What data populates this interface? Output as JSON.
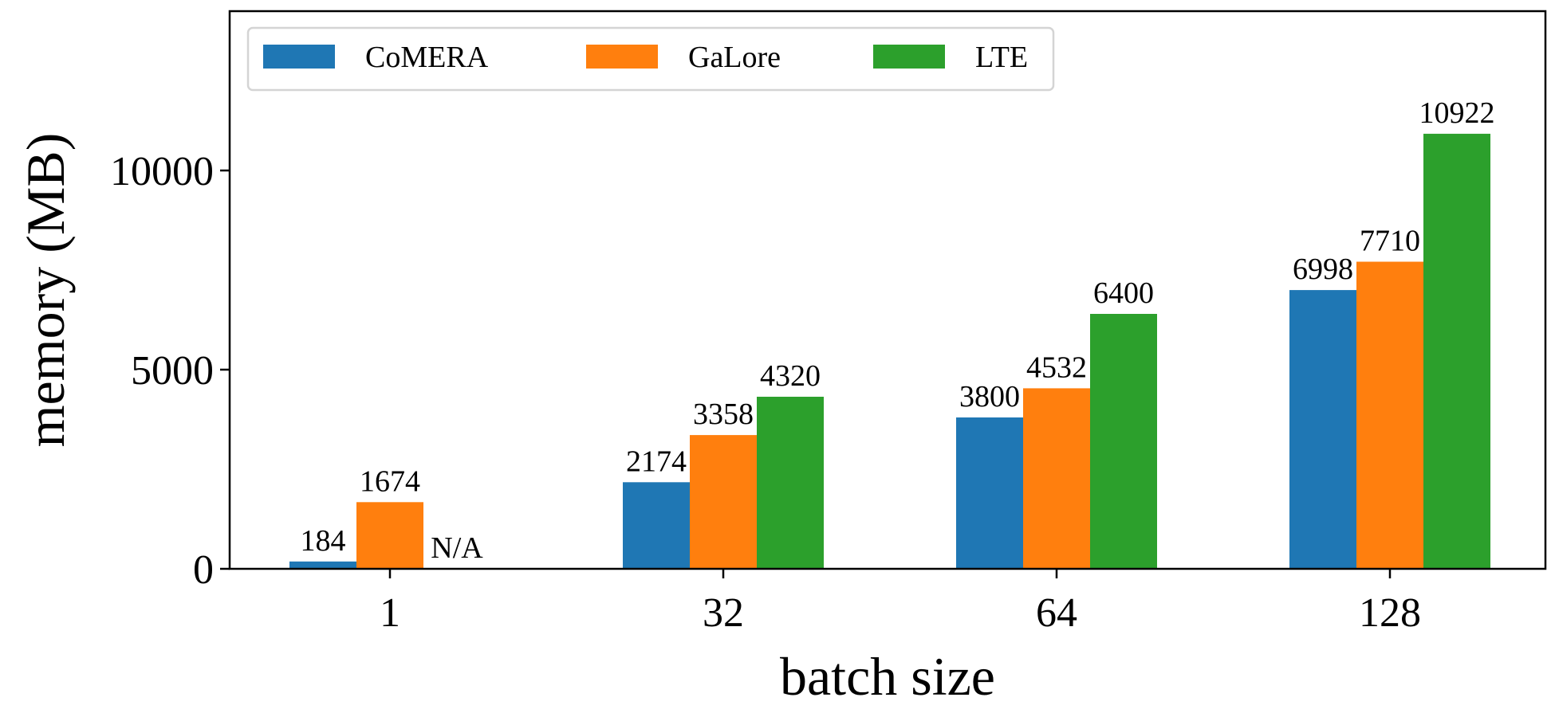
{
  "chart_data": {
    "type": "bar",
    "categories": [
      "1",
      "32",
      "64",
      "128"
    ],
    "series": [
      {
        "name": "CoMERA",
        "color": "#1f77b4",
        "values": [
          184,
          2174,
          3800,
          6998
        ],
        "labels": [
          "184",
          "2174",
          "3800",
          "6998"
        ]
      },
      {
        "name": "GaLore",
        "color": "#ff7f0e",
        "values": [
          1674,
          3358,
          4532,
          7710
        ],
        "labels": [
          "1674",
          "3358",
          "4532",
          "7710"
        ]
      },
      {
        "name": "LTE",
        "color": "#2ca02c",
        "values": [
          null,
          4320,
          6400,
          10922
        ],
        "labels": [
          "N/A",
          "4320",
          "6400",
          "10922"
        ]
      }
    ],
    "title": "",
    "xlabel": "batch size",
    "ylabel": "memory (MB)",
    "ylim": [
      0,
      14000
    ],
    "yticks": [
      0,
      5000,
      10000
    ],
    "ytick_labels": [
      "0",
      "5000",
      "10000"
    ],
    "legend_position": "top-left",
    "grid": false
  }
}
